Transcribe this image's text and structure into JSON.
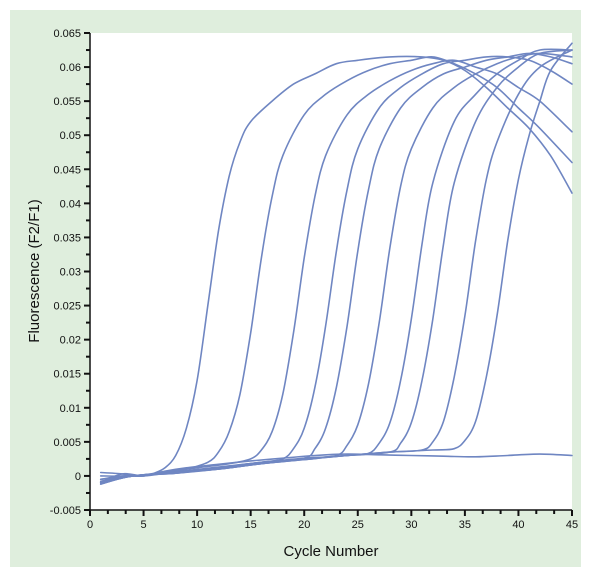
{
  "chart_data": {
    "type": "line",
    "title": "",
    "xlabel": "Cycle Number",
    "ylabel": "Fluorescence (F2/F1)",
    "xlim": [
      0,
      45
    ],
    "ylim": [
      -0.005,
      0.065
    ],
    "x_ticks": [
      0,
      5,
      10,
      15,
      20,
      25,
      30,
      35,
      40,
      45
    ],
    "x_tick_labels": [
      "0",
      "5",
      "10",
      "15",
      "20",
      "25",
      "30",
      "35",
      "40",
      "45"
    ],
    "y_ticks": [
      -0.005,
      0,
      0.005,
      0.01,
      0.015,
      0.02,
      0.025,
      0.03,
      0.035,
      0.04,
      0.045,
      0.05,
      0.055,
      0.06,
      0.065
    ],
    "y_tick_labels": [
      "-0.005",
      "0",
      "0.005",
      "0.01",
      "0.015",
      "0.02",
      "0.025",
      "0.03",
      "0.035",
      "0.04",
      "0.045",
      "0.05",
      "0.055",
      "0.06",
      "0.065"
    ],
    "grid": false,
    "legend": "none",
    "line_color": "#6f86c2",
    "background_color": "#dfeedd",
    "plot_background": "#ffffff",
    "series": [
      {
        "x": [
          1,
          3,
          4,
          5,
          6,
          7,
          8,
          9,
          10,
          11,
          12,
          13,
          14,
          15,
          17,
          19,
          21,
          23,
          25,
          28,
          31,
          33,
          35,
          37,
          39,
          41,
          43,
          45
        ],
        "values": [
          0.0005,
          0.0003,
          0.0,
          0.0,
          0.0004,
          0.0012,
          0.003,
          0.007,
          0.014,
          0.025,
          0.036,
          0.044,
          0.049,
          0.052,
          0.055,
          0.0575,
          0.059,
          0.0605,
          0.061,
          0.0615,
          0.0615,
          0.061,
          0.0595,
          0.057,
          0.054,
          0.051,
          0.047,
          0.0415
        ]
      },
      {
        "x": [
          1,
          3,
          5,
          7,
          9,
          11,
          12,
          13,
          14,
          15,
          16,
          17,
          18,
          20,
          22,
          24,
          26,
          28,
          30,
          32,
          34,
          36,
          38,
          40,
          42,
          45
        ],
        "values": [
          -0.001,
          0.0003,
          0.0,
          0.0004,
          0.001,
          0.002,
          0.0035,
          0.0065,
          0.012,
          0.021,
          0.032,
          0.041,
          0.047,
          0.053,
          0.056,
          0.058,
          0.0595,
          0.0605,
          0.061,
          0.0615,
          0.0605,
          0.059,
          0.057,
          0.054,
          0.051,
          0.046
        ]
      },
      {
        "x": [
          1,
          4,
          7,
          10,
          13,
          15,
          16,
          17,
          18,
          19,
          20,
          21,
          22,
          24,
          26,
          28,
          30,
          32,
          34,
          36,
          38,
          40,
          42,
          45
        ],
        "values": [
          0.0,
          0.0,
          0.0006,
          0.0012,
          0.0018,
          0.0025,
          0.0038,
          0.0065,
          0.012,
          0.021,
          0.032,
          0.041,
          0.047,
          0.053,
          0.056,
          0.058,
          0.0595,
          0.0605,
          0.061,
          0.06,
          0.059,
          0.057,
          0.055,
          0.0505
        ]
      },
      {
        "x": [
          1,
          4,
          8,
          12,
          16,
          18,
          19,
          20,
          21,
          22,
          23,
          24,
          25,
          27,
          29,
          31,
          33,
          35,
          37,
          39,
          41,
          43,
          45
        ],
        "values": [
          -0.0005,
          0.0,
          0.0006,
          0.0013,
          0.002,
          0.0025,
          0.004,
          0.007,
          0.013,
          0.022,
          0.033,
          0.042,
          0.048,
          0.054,
          0.057,
          0.059,
          0.0605,
          0.061,
          0.0615,
          0.0615,
          0.061,
          0.0595,
          0.0575
        ]
      },
      {
        "x": [
          1,
          4,
          8,
          12,
          16,
          20,
          21,
          22,
          23,
          24,
          25,
          26,
          27,
          29,
          31,
          33,
          35,
          37,
          39,
          41,
          43,
          45
        ],
        "values": [
          -0.0008,
          0.0,
          0.0005,
          0.0012,
          0.002,
          0.0026,
          0.004,
          0.007,
          0.013,
          0.022,
          0.033,
          0.042,
          0.048,
          0.054,
          0.057,
          0.059,
          0.06,
          0.061,
          0.0615,
          0.062,
          0.0615,
          0.0605
        ]
      },
      {
        "x": [
          1,
          4,
          8,
          12,
          16,
          20,
          23,
          24,
          25,
          26,
          27,
          28,
          29,
          30,
          32,
          34,
          36,
          38,
          40,
          42,
          45
        ],
        "values": [
          -0.001,
          0.0,
          0.0004,
          0.0012,
          0.002,
          0.0026,
          0.003,
          0.0045,
          0.0075,
          0.0135,
          0.0225,
          0.0335,
          0.0425,
          0.048,
          0.054,
          0.057,
          0.059,
          0.0605,
          0.0615,
          0.062,
          0.0615
        ]
      },
      {
        "x": [
          1,
          4,
          8,
          12,
          16,
          20,
          24,
          26,
          27,
          28,
          29,
          30,
          31,
          32,
          34,
          36,
          38,
          40,
          42,
          45
        ],
        "values": [
          -0.0012,
          0.0,
          0.0004,
          0.0011,
          0.0019,
          0.0025,
          0.003,
          0.0033,
          0.0048,
          0.0078,
          0.014,
          0.023,
          0.034,
          0.043,
          0.052,
          0.056,
          0.059,
          0.061,
          0.0625,
          0.0625
        ]
      },
      {
        "x": [
          1,
          4,
          8,
          12,
          16,
          20,
          24,
          28,
          29,
          30,
          31,
          32,
          33,
          34,
          36,
          38,
          40,
          42,
          45
        ],
        "values": [
          -0.001,
          0.0,
          0.0005,
          0.001,
          0.0018,
          0.0025,
          0.003,
          0.0035,
          0.0048,
          0.0078,
          0.014,
          0.023,
          0.034,
          0.043,
          0.052,
          0.057,
          0.06,
          0.062,
          0.0625
        ]
      },
      {
        "x": [
          1,
          4,
          8,
          12,
          16,
          20,
          24,
          28,
          31,
          32,
          33,
          34,
          35,
          36,
          37,
          38,
          40,
          42,
          45
        ],
        "values": [
          -0.0012,
          0.0,
          0.0004,
          0.001,
          0.0018,
          0.0024,
          0.003,
          0.0035,
          0.0038,
          0.005,
          0.008,
          0.0145,
          0.0235,
          0.0345,
          0.0435,
          0.049,
          0.056,
          0.06,
          0.0625
        ]
      },
      {
        "x": [
          1,
          4,
          8,
          12,
          16,
          20,
          24,
          28,
          32,
          34,
          35,
          36,
          37,
          38,
          39,
          40,
          41,
          42,
          43,
          45
        ],
        "values": [
          -0.0008,
          0.0,
          0.0005,
          0.001,
          0.0018,
          0.0024,
          0.003,
          0.0035,
          0.0038,
          0.004,
          0.0052,
          0.008,
          0.0145,
          0.0235,
          0.0345,
          0.0435,
          0.05,
          0.055,
          0.0595,
          0.0635
        ]
      },
      {
        "x": [
          1,
          3,
          5,
          7,
          9,
          12,
          15,
          18,
          21,
          24,
          27,
          30,
          33,
          36,
          39,
          42,
          45
        ],
        "values": [
          -0.0005,
          0.0,
          0.0,
          0.0007,
          0.0012,
          0.0017,
          0.0022,
          0.0026,
          0.003,
          0.0032,
          0.0031,
          0.003,
          0.0029,
          0.0028,
          0.003,
          0.0032,
          0.003
        ]
      }
    ]
  }
}
